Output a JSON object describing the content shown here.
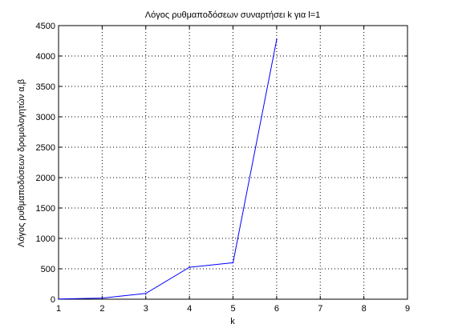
{
  "chart_data": {
    "type": "line",
    "title": "Λόγος ρυθμαποδόσεων συναρτήσει k για l=1",
    "xlabel": "k",
    "ylabel": "Λόγος ρυθμαποδόσεων δρομολογητών α,β",
    "xlim": [
      1,
      9
    ],
    "ylim": [
      0,
      4500
    ],
    "xticks": [
      1,
      2,
      3,
      4,
      5,
      6,
      7,
      8,
      9
    ],
    "yticks": [
      0,
      500,
      1000,
      1500,
      2000,
      2500,
      3000,
      3500,
      4000,
      4500
    ],
    "grid": true,
    "series": [
      {
        "color": "#0000ff",
        "x": [
          1,
          2,
          3,
          4,
          5,
          6
        ],
        "values": [
          2,
          18,
          95,
          525,
          600,
          4270
        ]
      }
    ]
  }
}
